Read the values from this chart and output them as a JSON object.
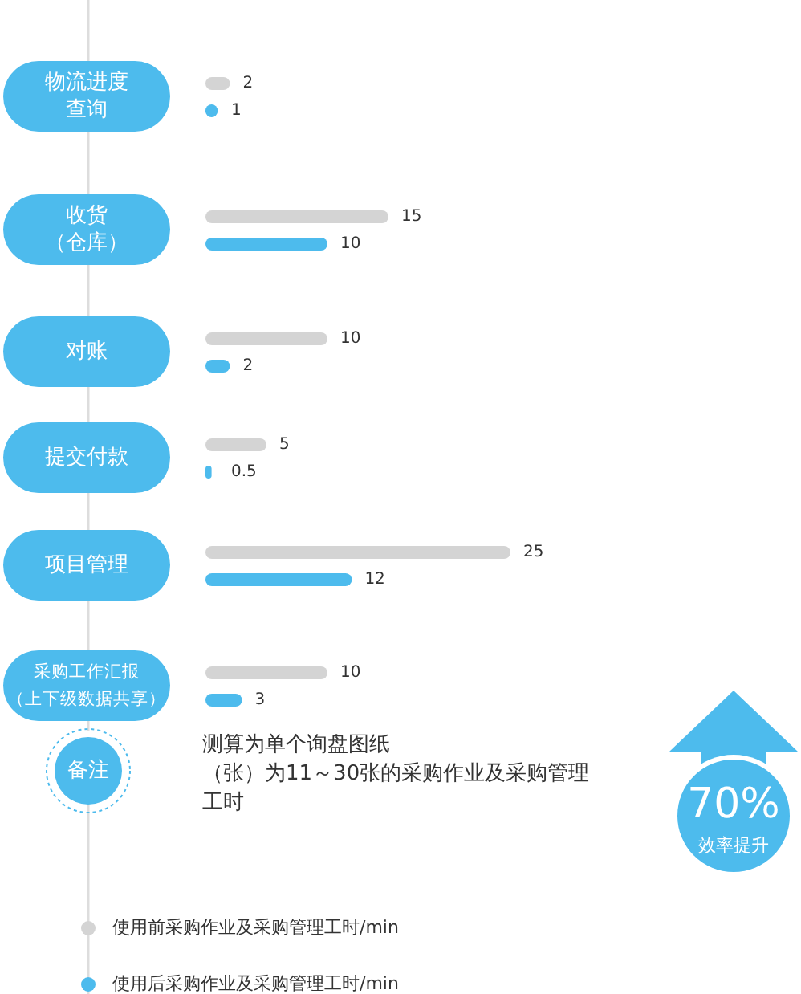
{
  "chart_data": {
    "type": "bar",
    "orientation": "horizontal",
    "data_labels": true,
    "legend": "bottom",
    "categories": [
      "物流进度查询",
      "收货（仓库）",
      "对账",
      "提交付款",
      "项目管理",
      "采购工作汇报（上下级数据共享）"
    ],
    "series": [
      {
        "name": "使用前采购作业及采购管理工时/min",
        "color": "#d4d4d4",
        "values": [
          2,
          15,
          10,
          5,
          25,
          10
        ]
      },
      {
        "name": "使用后采购作业及采购管理工时/min",
        "color": "#4dbbed",
        "values": [
          1,
          10,
          2,
          0.5,
          12,
          3
        ]
      }
    ],
    "annotations": [
      "备注",
      "测算为单个询盘图纸（张）为11～30张的采购作业及采购管理工时",
      "70%",
      "效率提升"
    ]
  }
}
